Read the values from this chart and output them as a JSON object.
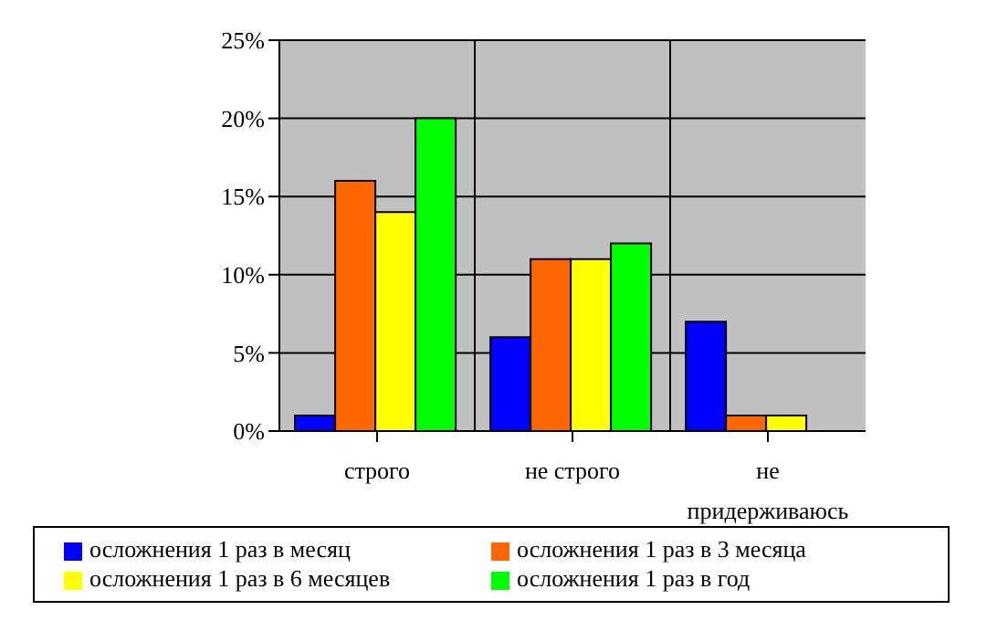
{
  "chart_data": {
    "type": "bar",
    "categories": [
      "строго",
      "не строго",
      "не придерживаюсь"
    ],
    "series": [
      {
        "name": "осложнения 1 раз в месяц",
        "color": "#0000ff",
        "values": [
          1,
          6,
          7
        ]
      },
      {
        "name": "осложнения 1 раз в 3 месяца",
        "color": "#ff6600",
        "values": [
          16,
          11,
          1
        ]
      },
      {
        "name": "осложнения 1 раз в 6 месяцев",
        "color": "#ffff00",
        "values": [
          14,
          11,
          1
        ]
      },
      {
        "name": "осложнения 1 раз в год",
        "color": "#00ff00",
        "values": [
          20,
          12,
          0
        ]
      }
    ],
    "ylim": [
      0,
      25
    ],
    "yticks": [
      {
        "value": 0,
        "label": "0%"
      },
      {
        "value": 5,
        "label": "5%"
      },
      {
        "value": 10,
        "label": "10%"
      },
      {
        "value": 15,
        "label": "15%"
      },
      {
        "value": 20,
        "label": "20%"
      },
      {
        "value": 25,
        "label": "25%"
      }
    ],
    "grid": true,
    "legend": "bottom"
  }
}
